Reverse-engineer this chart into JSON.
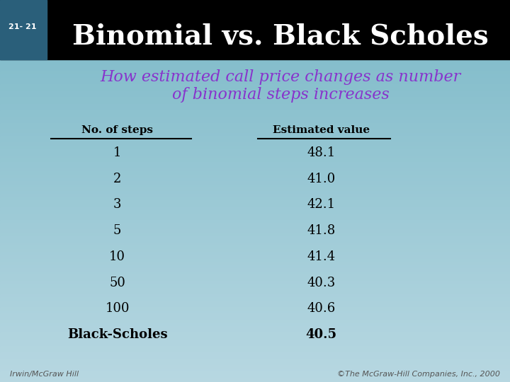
{
  "slide_number": "21- 21",
  "title": "Binomial vs. Black Scholes",
  "subtitle": "How estimated call price changes as number\nof binomial steps increases",
  "col1_header": "No. of steps",
  "col2_header": "Estimated value",
  "rows": [
    {
      "steps": "1",
      "value": "48.1"
    },
    {
      "steps": "2",
      "value": "41.0"
    },
    {
      "steps": "3",
      "value": "42.1"
    },
    {
      "steps": "5",
      "value": "41.8"
    },
    {
      "steps": "10",
      "value": "41.4"
    },
    {
      "steps": "50",
      "value": "40.3"
    },
    {
      "steps": "100",
      "value": "40.6"
    },
    {
      "steps": "Black-Scholes",
      "value": "40.5"
    }
  ],
  "slide_num_box_color": "#2a5f7a",
  "title_color": "#ffffff",
  "subtitle_color": "#8833cc",
  "footer_left": "Irwin/McGraw Hill",
  "footer_right": "©The McGraw-Hill Companies, Inc., 2000"
}
